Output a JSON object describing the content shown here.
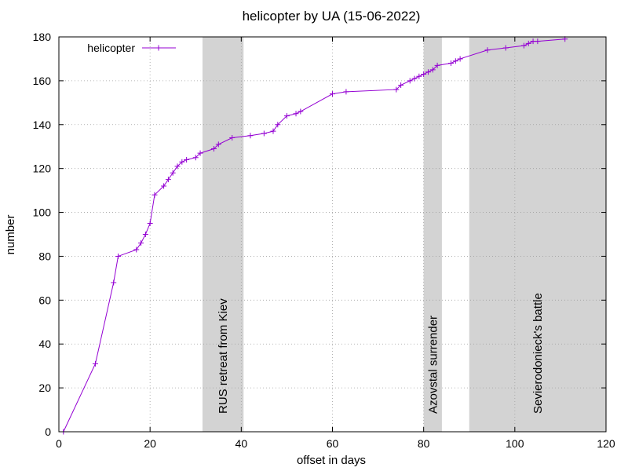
{
  "chart_data": {
    "type": "line",
    "title": "helicopter by UA (15-06-2022)",
    "xlabel": "offset in days",
    "ylabel": "number",
    "xlim": [
      0,
      120
    ],
    "ylim": [
      0,
      180
    ],
    "xticks": [
      0,
      20,
      40,
      60,
      80,
      100,
      120
    ],
    "yticks": [
      0,
      20,
      40,
      60,
      80,
      100,
      120,
      140,
      160,
      180
    ],
    "grid": true,
    "legend_position": "top-left",
    "series": [
      {
        "name": "helicopter",
        "color": "#9400d3",
        "marker": "plus",
        "points": [
          [
            1,
            0
          ],
          [
            8,
            31
          ],
          [
            12,
            68
          ],
          [
            13,
            80
          ],
          [
            17,
            83
          ],
          [
            18,
            86
          ],
          [
            19,
            90
          ],
          [
            20,
            95
          ],
          [
            21,
            108
          ],
          [
            23,
            112
          ],
          [
            24,
            115
          ],
          [
            25,
            118
          ],
          [
            26,
            121
          ],
          [
            27,
            123
          ],
          [
            28,
            124
          ],
          [
            30,
            125
          ],
          [
            31,
            127
          ],
          [
            34,
            129
          ],
          [
            35,
            131
          ],
          [
            38,
            134
          ],
          [
            42,
            135
          ],
          [
            45,
            136
          ],
          [
            47,
            137
          ],
          [
            48,
            140
          ],
          [
            50,
            144
          ],
          [
            52,
            145
          ],
          [
            53,
            146
          ],
          [
            60,
            154
          ],
          [
            63,
            155
          ],
          [
            74,
            156
          ],
          [
            75,
            158
          ],
          [
            77,
            160
          ],
          [
            78,
            161
          ],
          [
            79,
            162
          ],
          [
            80,
            163
          ],
          [
            81,
            164
          ],
          [
            82,
            165
          ],
          [
            83,
            167
          ],
          [
            86,
            168
          ],
          [
            87,
            169
          ],
          [
            88,
            170
          ],
          [
            94,
            174
          ],
          [
            98,
            175
          ],
          [
            102,
            176
          ],
          [
            103,
            177
          ],
          [
            104,
            178
          ],
          [
            105,
            178
          ],
          [
            111,
            179
          ]
        ]
      }
    ],
    "bands": [
      {
        "x0": 31.5,
        "x1": 40.5,
        "label": "RUS retreat from Kiev"
      },
      {
        "x0": 80,
        "x1": 84,
        "label": "Azovstal surrender"
      },
      {
        "x0": 90,
        "x1": 120,
        "label": "Sevierodonieck's battle"
      }
    ]
  }
}
